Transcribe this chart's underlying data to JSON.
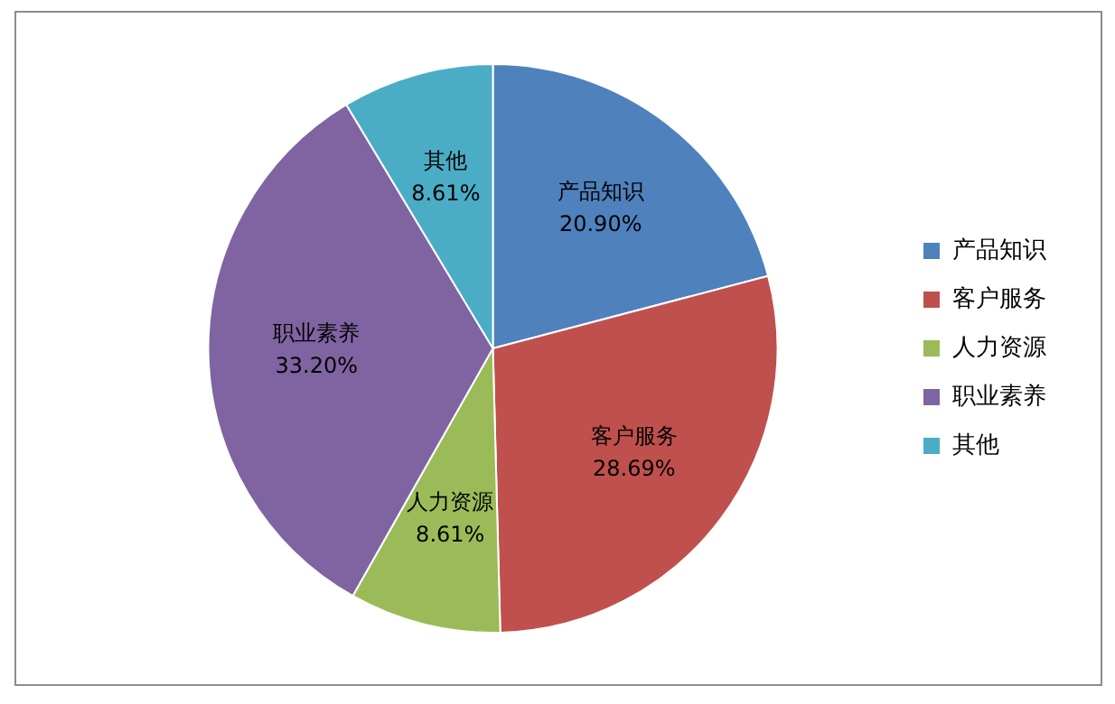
{
  "chart_data": {
    "type": "pie",
    "categories": [
      "产品知识",
      "客户服务",
      "人力资源",
      "职业素养",
      "其他"
    ],
    "values": [
      20.9,
      28.69,
      8.61,
      33.2,
      8.61
    ],
    "colors": [
      "#4f81bd",
      "#c0504d",
      "#9bbb59",
      "#8064a2",
      "#4bacc6"
    ],
    "value_labels": [
      "20.90%",
      "28.69%",
      "8.61%",
      "33.20%",
      "8.61%"
    ],
    "legend": "right"
  }
}
